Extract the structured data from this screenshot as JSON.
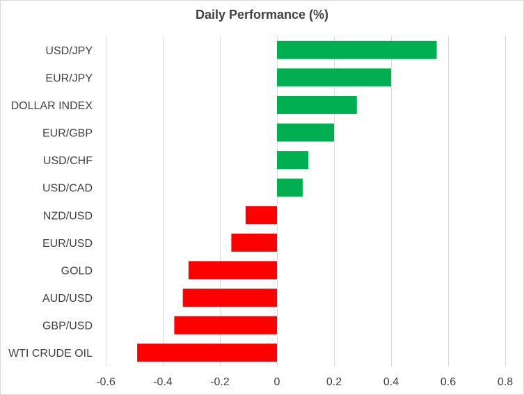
{
  "chart_data": {
    "type": "bar",
    "orientation": "horizontal",
    "title": "Daily Performance (%)",
    "xlabel": "",
    "ylabel": "",
    "categories": [
      "USD/JPY",
      "EUR/JPY",
      "DOLLAR INDEX",
      "EUR/GBP",
      "USD/CHF",
      "USD/CAD",
      "NZD/USD",
      "EUR/USD",
      "GOLD",
      "AUD/USD",
      "GBP/USD",
      "WTI CRUDE OIL"
    ],
    "values": [
      0.56,
      0.4,
      0.28,
      0.2,
      0.11,
      0.09,
      -0.11,
      -0.16,
      -0.31,
      -0.33,
      -0.36,
      -0.49
    ],
    "xlim": [
      -0.6,
      0.8
    ],
    "xticks": [
      -0.6,
      -0.4,
      -0.2,
      0,
      0.2,
      0.4,
      0.6,
      0.8
    ],
    "xtick_labels": [
      "-0.6",
      "-0.4",
      "-0.2",
      "0",
      "0.2",
      "0.4",
      "0.6",
      "0.8"
    ],
    "grid": "vertical",
    "legend": "none",
    "colors": {
      "positive": "#00b050",
      "negative": "#ff0000",
      "grid": "#d9d9d9",
      "text": "#404040"
    }
  }
}
